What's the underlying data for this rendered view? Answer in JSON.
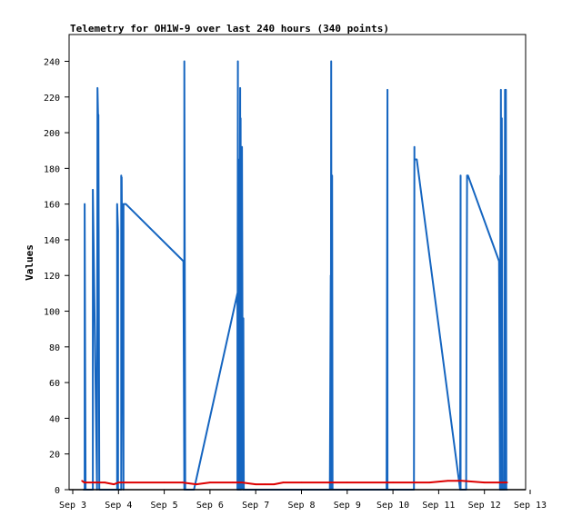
{
  "chart_data": {
    "type": "line",
    "title": "Telemetry for OH1W-9 over last 240 hours (340 points)",
    "ylabel": "Values",
    "xlabel": "",
    "x_ticks": [
      "Sep 3",
      "Sep 4",
      "Sep 5",
      "Sep 6",
      "Sep 7",
      "Sep 8",
      "Sep 9",
      "Sep 10",
      "Sep 11",
      "Sep 12",
      "Sep 13"
    ],
    "y_ticks": [
      0,
      20,
      40,
      60,
      80,
      100,
      120,
      140,
      160,
      180,
      200,
      220,
      240
    ],
    "xlim": [
      3.0,
      13.0
    ],
    "ylim": [
      0,
      255
    ],
    "grid": false,
    "legend": "none",
    "series": [
      {
        "color": "#1565c0",
        "x": [
          3.23,
          3.26,
          3.26,
          3.28,
          3.42,
          3.44,
          3.44,
          3.53,
          3.54,
          3.56,
          3.56,
          3.58,
          3.6,
          3.96,
          3.97,
          3.97,
          3.99,
          3.99,
          4.06,
          4.06,
          4.07,
          4.07,
          4.11,
          4.11,
          4.16,
          5.42,
          5.44,
          5.44,
          5.46,
          5.65,
          6.6,
          6.6,
          6.61,
          6.61,
          6.62,
          6.62,
          6.63,
          6.64,
          6.66,
          6.66,
          6.67,
          6.68,
          6.68,
          6.7,
          6.72,
          6.72,
          6.73,
          6.74,
          6.75,
          6.75,
          6.76,
          6.78,
          6.78,
          6.8,
          8.62,
          8.64,
          8.64,
          8.65,
          8.66,
          8.67,
          8.68,
          9.86,
          9.88,
          9.88,
          9.9,
          10.46,
          10.47,
          10.47,
          10.49,
          10.52,
          11.47,
          11.48,
          11.48,
          11.5,
          11.6,
          11.62,
          11.62,
          11.64,
          12.32,
          12.34,
          12.35,
          12.35,
          12.36,
          12.38,
          12.38,
          12.4,
          12.44,
          12.45,
          12.45,
          12.47,
          12.48,
          12.49,
          12.5
        ],
        "y": [
          0,
          0,
          160,
          0,
          0,
          0,
          168,
          0,
          225,
          200,
          210,
          0,
          0,
          0,
          0,
          160,
          145,
          0,
          0,
          176,
          80,
          175,
          0,
          160,
          160,
          128,
          0,
          240,
          0,
          0,
          110,
          0,
          240,
          0,
          185,
          0,
          160,
          0,
          225,
          0,
          208,
          0,
          0,
          192,
          0,
          0,
          96,
          0,
          0,
          0,
          0,
          0,
          0,
          0,
          0,
          120,
          0,
          240,
          0,
          176,
          0,
          0,
          224,
          0,
          0,
          0,
          192,
          185,
          185,
          185,
          0,
          176,
          0,
          0,
          0,
          176,
          176,
          176,
          128,
          0,
          176,
          0,
          224,
          0,
          208,
          0,
          0,
          224,
          0,
          224,
          0,
          0,
          0
        ]
      },
      {
        "color": "#dd0000",
        "x": [
          3.2,
          3.25,
          3.7,
          3.9,
          4.0,
          5.0,
          5.4,
          5.7,
          6.0,
          6.5,
          6.7,
          7.0,
          7.2,
          7.4,
          7.6,
          8.0,
          9.0,
          10.0,
          10.8,
          11.2,
          11.5,
          12.0,
          12.5
        ],
        "y": [
          5,
          4,
          4,
          3,
          4,
          4,
          4,
          3,
          4,
          4,
          4,
          3,
          3,
          3,
          4,
          4,
          4,
          4,
          4,
          5,
          5,
          4,
          4
        ]
      }
    ]
  }
}
